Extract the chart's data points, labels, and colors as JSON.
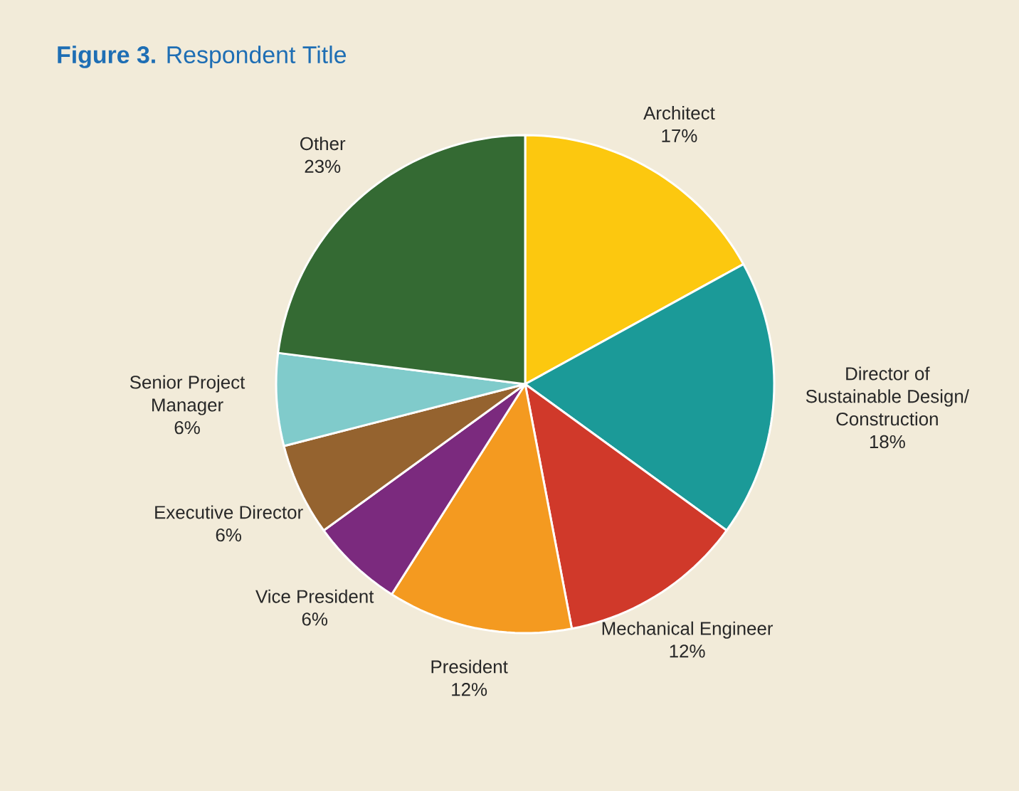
{
  "chart_data": {
    "type": "pie",
    "title": "**Figure 3.** Respondent Title",
    "categories": [
      "Architect",
      "Director of Sustainable Design/ Construction",
      "Mechanical Engineer",
      "President",
      "Vice President",
      "Executive Director",
      "Senior Project Manager",
      "Other"
    ],
    "values": [
      17,
      18,
      12,
      12,
      6,
      6,
      6,
      23
    ],
    "value_labels": [
      "17%",
      "18%",
      "12%",
      "12%",
      "6%",
      "6%",
      "6%",
      "23%"
    ],
    "colors": [
      "#fcc80f",
      "#1b9a98",
      "#d0392a",
      "#f49a20",
      "#7b2a7e",
      "#95632f",
      "#80cbcb",
      "#346a33"
    ]
  }
}
